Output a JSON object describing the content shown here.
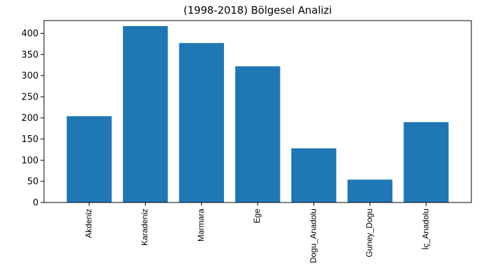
{
  "chart_data": {
    "type": "bar",
    "title": "(1998-2018) Bölgesel Analizi",
    "xlabel": "",
    "ylabel": "",
    "categories": [
      "Akdeniz",
      "Karadeniz",
      "Marmara",
      "Ege",
      "Dogu_Anadolu",
      "Guney_Dogu",
      "İç_Anadolu"
    ],
    "values": [
      204,
      417,
      377,
      322,
      128,
      54,
      190
    ],
    "ylim": [
      0,
      430
    ],
    "yticks": [
      0,
      50,
      100,
      150,
      200,
      250,
      300,
      350,
      400
    ],
    "grid": false,
    "bar_color": "#1f77b4",
    "x_tick_rotation": "vertical"
  }
}
